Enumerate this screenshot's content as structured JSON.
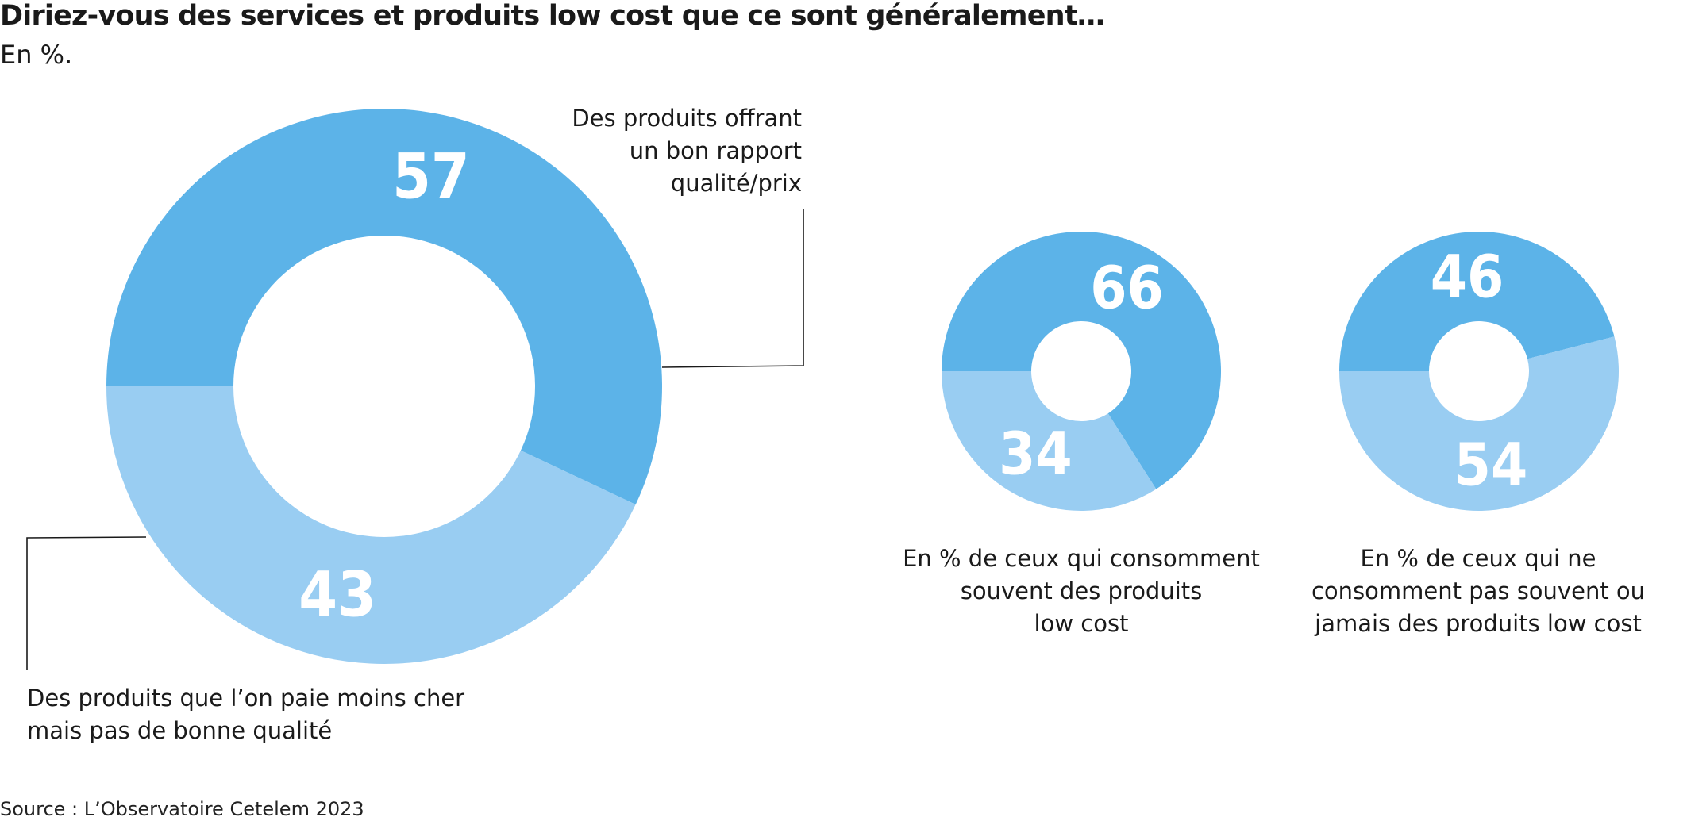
{
  "title": "Diriez-vous des services et produits low cost que ce sont généralement…",
  "subtitle": "En %.",
  "source": "Source : L’Observatoire Cetelem 2023",
  "colors": {
    "good": "#5cb3e8",
    "cheap": "#99cdf2",
    "leader": "#1a1a1a"
  },
  "chart_data": [
    {
      "type": "pie",
      "title": "",
      "labels": [
        "Des produits offrant un bon rapport qualité/prix",
        "Des produits que l’on paie moins cher mais pas de bonne qualité"
      ],
      "values": [
        57,
        43
      ]
    },
    {
      "type": "pie",
      "title": "En % de ceux qui consomment souvent des produits low cost",
      "labels": [
        "Des produits offrant un bon rapport qualité/prix",
        "Des produits que l’on paie moins cher mais pas de bonne qualité"
      ],
      "values": [
        66,
        34
      ]
    },
    {
      "type": "pie",
      "title": "En % de ceux qui ne consomment pas souvent ou jamais des produits low cost",
      "labels": [
        "Des produits offrant un bon rapport qualité/prix",
        "Des produits que l’on paie moins cher mais pas de bonne qualité"
      ],
      "values": [
        46,
        54
      ]
    }
  ],
  "labels": {
    "good_line1": "Des produits offrant",
    "good_line2": "un bon rapport",
    "good_line3": "qualité/prix",
    "cheap_line1": "Des produits que l’on paie moins cher",
    "cheap_line2": "mais pas de bonne qualité",
    "often_line1": "En % de ceux qui consomment",
    "often_line2": "souvent des produits",
    "often_line3": "low cost",
    "rare_line1": "En % de ceux qui ne",
    "rare_line2": "consomment pas souvent ou",
    "rare_line3": "jamais des produits low cost"
  }
}
